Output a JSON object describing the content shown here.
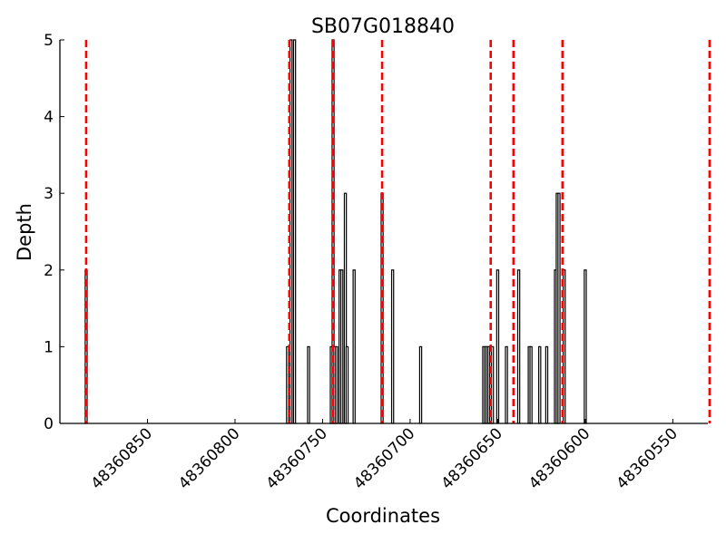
{
  "chart_data": {
    "type": "bar",
    "title": "SB07G018840",
    "xlabel": "Coordinates",
    "ylabel": "Depth",
    "xlim": [
      48360900,
      48360530
    ],
    "ylim": [
      0,
      5
    ],
    "x_inverted": true,
    "grid": false,
    "xticks": [
      48360850,
      48360800,
      48360750,
      48360700,
      48360650,
      48360600,
      48360550
    ],
    "xtick_labels": [
      "48360850",
      "48360800",
      "48360750",
      "48360700",
      "48360650",
      "48360600",
      "48360550"
    ],
    "yticks": [
      0,
      1,
      2,
      3,
      4,
      5
    ],
    "ytick_labels": [
      "0",
      "1",
      "2",
      "3",
      "4",
      "5"
    ],
    "bars": {
      "x": [
        48360885,
        48360770,
        48360768,
        48360766,
        48360758,
        48360745,
        48360744,
        48360743,
        48360742,
        48360740,
        48360739,
        48360737,
        48360736,
        48360732,
        48360716,
        48360710,
        48360694,
        48360658,
        48360657,
        48360656,
        48360655,
        48360654,
        48360653,
        48360650,
        48360645,
        48360638,
        48360632,
        48360631,
        48360626,
        48360622,
        48360617,
        48360616,
        48360615,
        48360612,
        48360600
      ],
      "depth": [
        2,
        1,
        5,
        5,
        1,
        1,
        5,
        1,
        1,
        2,
        2,
        3,
        1,
        2,
        3,
        2,
        1,
        1,
        1,
        1,
        1,
        1,
        1,
        2,
        1,
        2,
        1,
        1,
        1,
        1,
        2,
        3,
        3,
        2,
        2
      ]
    },
    "dashed_lines": {
      "x": [
        48360885,
        48360769,
        48360744,
        48360716,
        48360654,
        48360641,
        48360613,
        48360529
      ],
      "color": "#ff0000",
      "style": "dashed"
    },
    "colors": {
      "bar_fill": "#ffffff",
      "bar_stroke": "#000000",
      "marker_line": "#ff0000"
    }
  }
}
